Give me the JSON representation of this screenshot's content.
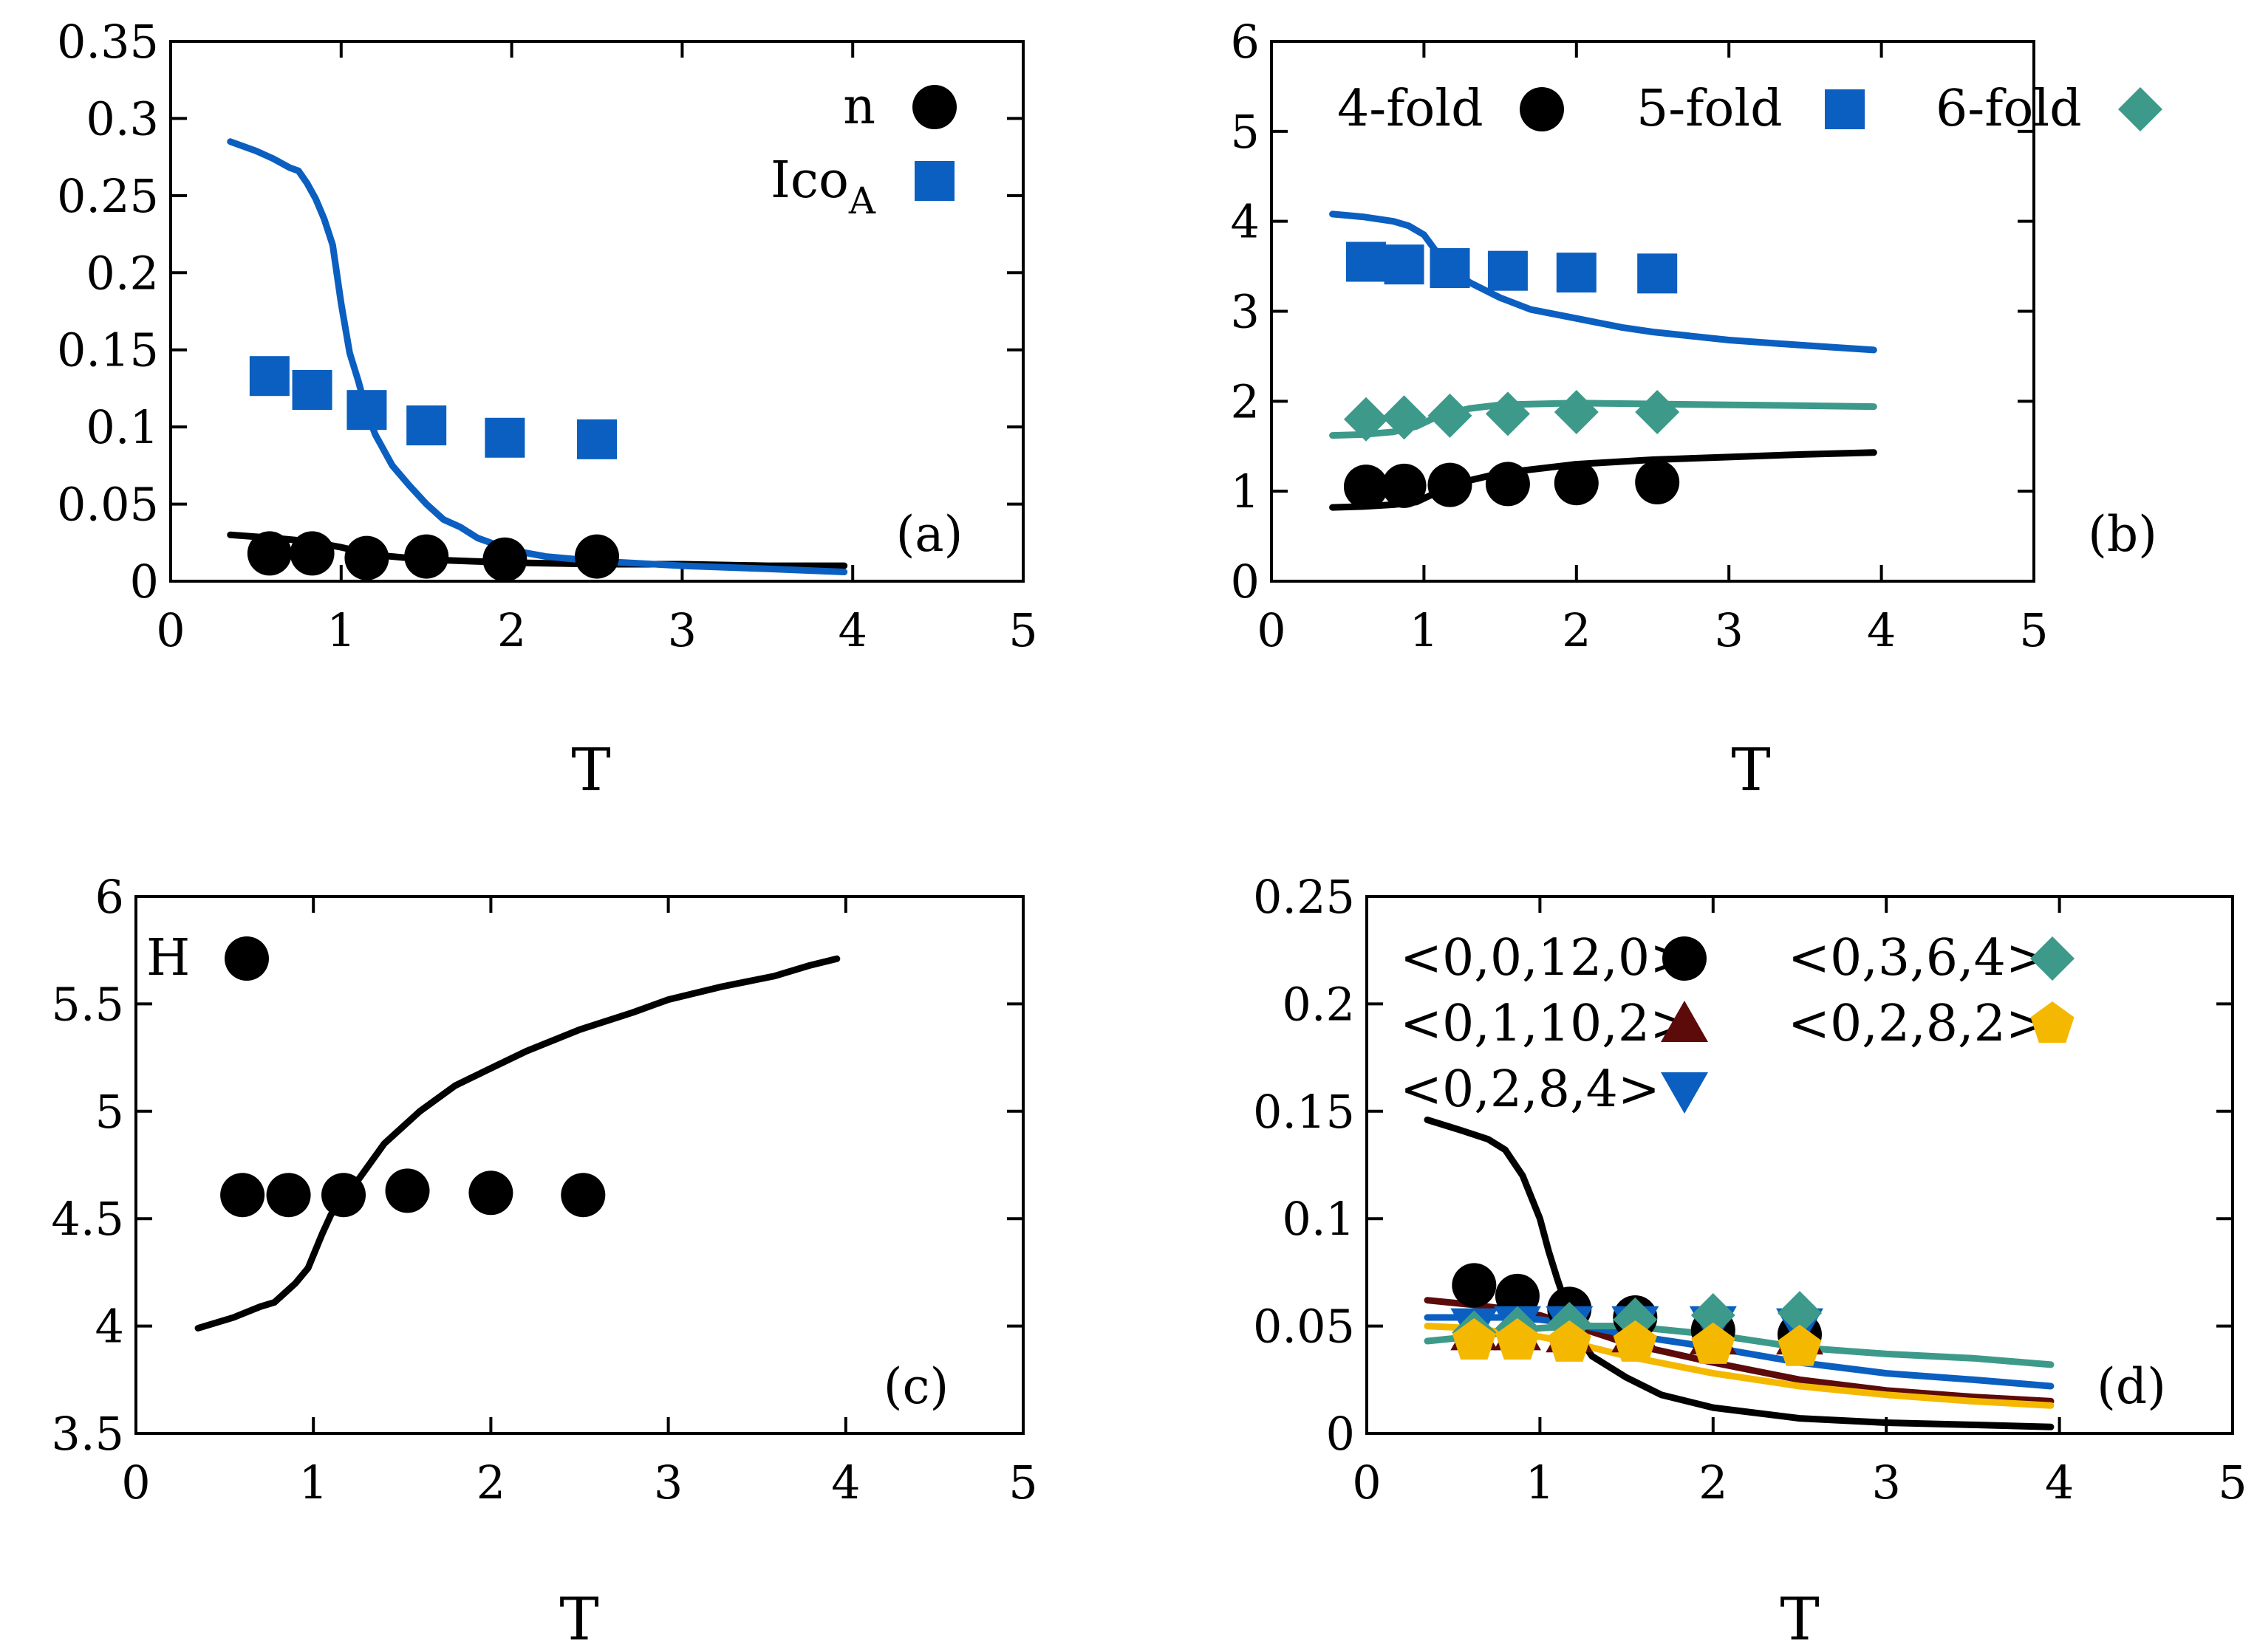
{
  "figure": {
    "colors": {
      "black": "#000000",
      "blue": "#0a5fc0",
      "teal": "#3d9a8a",
      "darkred": "#5c0a0a",
      "yellow": "#f5b800"
    }
  },
  "chart_data": [
    {
      "id": "a",
      "type": "scatter",
      "tag": "(a)",
      "xlabel": "T",
      "ylabel": "",
      "xlim": [
        0,
        5
      ],
      "ylim": [
        0,
        0.35
      ],
      "xticks": [
        "0",
        "1",
        "2",
        "3",
        "4",
        "5"
      ],
      "yticks": [
        "0",
        "0.05",
        "0.1",
        "0.15",
        "0.2",
        "0.25",
        "0.3",
        "0.35"
      ],
      "legend_position": "top-right",
      "series": [
        {
          "name": "n",
          "marker": "circle",
          "color": "#000000",
          "x": [
            0.58,
            0.83,
            1.15,
            1.5,
            1.96,
            2.5
          ],
          "y": [
            0.018,
            0.018,
            0.015,
            0.016,
            0.014,
            0.016
          ]
        },
        {
          "name": "Ico",
          "subscript": "A",
          "marker": "square",
          "color": "#0a5fc0",
          "x": [
            0.58,
            0.83,
            1.15,
            1.5,
            1.96,
            2.5
          ],
          "y": [
            0.133,
            0.124,
            0.111,
            0.101,
            0.093,
            0.092
          ]
        }
      ],
      "lines": [
        {
          "name": "n (line)",
          "color": "#000000",
          "x": [
            0.35,
            0.6,
            0.8,
            1.0,
            1.2,
            1.5,
            2.0,
            2.5,
            3.0,
            3.5,
            3.95
          ],
          "y": [
            0.03,
            0.028,
            0.026,
            0.022,
            0.017,
            0.014,
            0.012,
            0.011,
            0.011,
            0.01,
            0.01
          ]
        },
        {
          "name": "Ico_A (line)",
          "color": "#0a5fc0",
          "x": [
            0.35,
            0.5,
            0.6,
            0.7,
            0.75,
            0.8,
            0.85,
            0.9,
            0.95,
            1.0,
            1.05,
            1.1,
            1.15,
            1.2,
            1.3,
            1.4,
            1.5,
            1.6,
            1.7,
            1.8,
            2.0,
            2.2,
            2.5,
            3.0,
            3.5,
            3.95
          ],
          "y": [
            0.285,
            0.279,
            0.274,
            0.268,
            0.266,
            0.258,
            0.248,
            0.235,
            0.218,
            0.18,
            0.148,
            0.13,
            0.11,
            0.095,
            0.075,
            0.062,
            0.05,
            0.04,
            0.035,
            0.028,
            0.02,
            0.016,
            0.013,
            0.01,
            0.008,
            0.006
          ]
        }
      ]
    },
    {
      "id": "b",
      "type": "scatter",
      "tag": "(b)",
      "xlabel": "T",
      "ylabel": "",
      "xlim": [
        0,
        5
      ],
      "ylim": [
        0,
        6
      ],
      "xticks": [
        "0",
        "1",
        "2",
        "3",
        "4",
        "5"
      ],
      "yticks": [
        "0",
        "1",
        "2",
        "3",
        "4",
        "5",
        "6"
      ],
      "legend_position": "top",
      "series": [
        {
          "name": "4-fold",
          "marker": "circle",
          "color": "#000000",
          "x": [
            0.62,
            0.87,
            1.17,
            1.55,
            2.0,
            2.53
          ],
          "y": [
            1.05,
            1.06,
            1.07,
            1.08,
            1.09,
            1.1
          ]
        },
        {
          "name": "5-fold",
          "marker": "square",
          "color": "#0a5fc0",
          "x": [
            0.62,
            0.87,
            1.17,
            1.55,
            2.0,
            2.53
          ],
          "y": [
            3.55,
            3.52,
            3.48,
            3.45,
            3.43,
            3.42
          ]
        },
        {
          "name": "6-fold",
          "marker": "diamond",
          "color": "#3d9a8a",
          "x": [
            0.62,
            0.87,
            1.17,
            1.55,
            2.0,
            2.53
          ],
          "y": [
            1.8,
            1.82,
            1.84,
            1.86,
            1.88,
            1.88
          ]
        }
      ],
      "lines": [
        {
          "name": "4-fold (line)",
          "color": "#000000",
          "x": [
            0.4,
            0.6,
            0.8,
            0.95,
            1.0,
            1.1,
            1.2,
            1.5,
            2.0,
            2.5,
            3.0,
            3.5,
            3.95
          ],
          "y": [
            0.82,
            0.83,
            0.85,
            0.88,
            0.92,
            1.0,
            1.08,
            1.2,
            1.3,
            1.35,
            1.38,
            1.41,
            1.43
          ]
        },
        {
          "name": "5-fold (line)",
          "color": "#0a5fc0",
          "x": [
            0.4,
            0.6,
            0.8,
            0.9,
            1.0,
            1.1,
            1.2,
            1.3,
            1.5,
            1.7,
            2.0,
            2.3,
            2.5,
            3.0,
            3.5,
            3.95
          ],
          "y": [
            4.08,
            4.05,
            4.0,
            3.95,
            3.85,
            3.62,
            3.45,
            3.32,
            3.15,
            3.02,
            2.92,
            2.82,
            2.77,
            2.68,
            2.62,
            2.57
          ]
        },
        {
          "name": "6-fold (line)",
          "color": "#3d9a8a",
          "x": [
            0.4,
            0.6,
            0.8,
            0.95,
            1.1,
            1.3,
            1.5,
            2.0,
            2.5,
            3.0,
            3.5,
            3.95
          ],
          "y": [
            1.62,
            1.63,
            1.66,
            1.72,
            1.84,
            1.92,
            1.96,
            1.98,
            1.97,
            1.96,
            1.95,
            1.94
          ]
        }
      ]
    },
    {
      "id": "c",
      "type": "scatter",
      "tag": "(c)",
      "xlabel": "T",
      "ylabel": "",
      "xlim": [
        0,
        5
      ],
      "ylim": [
        3.5,
        6
      ],
      "xticks": [
        "0",
        "1",
        "2",
        "3",
        "4",
        "5"
      ],
      "yticks": [
        "3.5",
        "4",
        "4.5",
        "5",
        "5.5",
        "6"
      ],
      "legend_position": "top-left",
      "series": [
        {
          "name": "H",
          "marker": "circle",
          "color": "#000000",
          "x": [
            0.6,
            0.86,
            1.17,
            1.53,
            2.0,
            2.52
          ],
          "y": [
            4.61,
            4.61,
            4.61,
            4.63,
            4.62,
            4.61
          ]
        }
      ],
      "lines": [
        {
          "name": "H (line)",
          "color": "#000000",
          "x": [
            0.35,
            0.55,
            0.7,
            0.78,
            0.9,
            0.97,
            1.05,
            1.1,
            1.2,
            1.4,
            1.6,
            1.8,
            2.0,
            2.2,
            2.5,
            2.8,
            3.0,
            3.3,
            3.6,
            3.8,
            3.95
          ],
          "y": [
            3.99,
            4.04,
            4.09,
            4.11,
            4.2,
            4.27,
            4.43,
            4.52,
            4.62,
            4.85,
            5.0,
            5.12,
            5.2,
            5.28,
            5.38,
            5.46,
            5.52,
            5.58,
            5.63,
            5.68,
            5.71
          ]
        }
      ]
    },
    {
      "id": "d",
      "type": "scatter",
      "tag": "(d)",
      "xlabel": "T",
      "ylabel": "",
      "xlim": [
        0,
        5
      ],
      "ylim": [
        0,
        0.25
      ],
      "xticks": [
        "0",
        "1",
        "2",
        "3",
        "4",
        "5"
      ],
      "yticks": [
        "0",
        "0.05",
        "0.1",
        "0.15",
        "0.2",
        "0.25"
      ],
      "legend_position": "top",
      "series": [
        {
          "name": "<0,0,12,0>",
          "marker": "circle",
          "color": "#000000",
          "x": [
            0.62,
            0.87,
            1.17,
            1.55,
            2.0,
            2.5
          ],
          "y": [
            0.069,
            0.064,
            0.058,
            0.054,
            0.048,
            0.046
          ]
        },
        {
          "name": "<0,1,10,2>",
          "marker": "triangle-up",
          "color": "#5c0a0a",
          "x": [
            0.62,
            0.87,
            1.17,
            1.55,
            2.0,
            2.5
          ],
          "y": [
            0.047,
            0.047,
            0.046,
            0.046,
            0.045,
            0.045
          ]
        },
        {
          "name": "<0,2,8,4>",
          "marker": "triangle-down",
          "color": "#0a5fc0",
          "x": [
            0.62,
            0.87,
            1.17,
            1.55,
            2.0,
            2.5
          ],
          "y": [
            0.05,
            0.051,
            0.051,
            0.051,
            0.051,
            0.05
          ]
        },
        {
          "name": "<0,3,6,4>",
          "marker": "diamond",
          "color": "#3d9a8a",
          "x": [
            0.62,
            0.87,
            1.17,
            1.55,
            2.0,
            2.5
          ],
          "y": [
            0.047,
            0.049,
            0.051,
            0.053,
            0.055,
            0.056
          ]
        },
        {
          "name": "<0,2,8,2>",
          "marker": "pentagon",
          "color": "#f5b800",
          "x": [
            0.62,
            0.87,
            1.17,
            1.55,
            2.0,
            2.5
          ],
          "y": [
            0.043,
            0.043,
            0.042,
            0.042,
            0.041,
            0.04
          ]
        }
      ],
      "lines": [
        {
          "name": "<0,0,12,0> (line)",
          "color": "#000000",
          "x": [
            0.35,
            0.55,
            0.7,
            0.8,
            0.9,
            1.0,
            1.05,
            1.1,
            1.15,
            1.2,
            1.3,
            1.5,
            1.7,
            2.0,
            2.5,
            3.0,
            3.5,
            3.95
          ],
          "y": [
            0.146,
            0.141,
            0.137,
            0.132,
            0.12,
            0.1,
            0.085,
            0.072,
            0.06,
            0.048,
            0.036,
            0.026,
            0.018,
            0.012,
            0.007,
            0.005,
            0.004,
            0.003
          ]
        },
        {
          "name": "<0,1,10,2> (line)",
          "color": "#5c0a0a",
          "x": [
            0.35,
            0.6,
            0.8,
            1.0,
            1.2,
            1.5,
            2.0,
            2.5,
            3.0,
            3.5,
            3.95
          ],
          "y": [
            0.062,
            0.06,
            0.058,
            0.055,
            0.05,
            0.042,
            0.033,
            0.025,
            0.02,
            0.017,
            0.015
          ]
        },
        {
          "name": "<0,2,8,4> (line)",
          "color": "#0a5fc0",
          "x": [
            0.35,
            0.6,
            0.8,
            1.0,
            1.2,
            1.5,
            2.0,
            2.5,
            3.0,
            3.5,
            3.95
          ],
          "y": [
            0.054,
            0.054,
            0.054,
            0.053,
            0.051,
            0.046,
            0.04,
            0.033,
            0.028,
            0.025,
            0.022
          ]
        },
        {
          "name": "<0,3,6,4> (line)",
          "color": "#3d9a8a",
          "x": [
            0.35,
            0.6,
            0.8,
            1.0,
            1.2,
            1.5,
            2.0,
            2.5,
            3.0,
            3.5,
            3.95
          ],
          "y": [
            0.043,
            0.045,
            0.047,
            0.049,
            0.05,
            0.05,
            0.046,
            0.04,
            0.037,
            0.035,
            0.032
          ]
        },
        {
          "name": "<0,2,8,2> (line)",
          "color": "#f5b800",
          "x": [
            0.35,
            0.6,
            0.8,
            1.0,
            1.2,
            1.5,
            2.0,
            2.5,
            3.0,
            3.5,
            3.95
          ],
          "y": [
            0.05,
            0.049,
            0.047,
            0.045,
            0.042,
            0.036,
            0.028,
            0.022,
            0.018,
            0.015,
            0.013
          ]
        }
      ]
    }
  ]
}
